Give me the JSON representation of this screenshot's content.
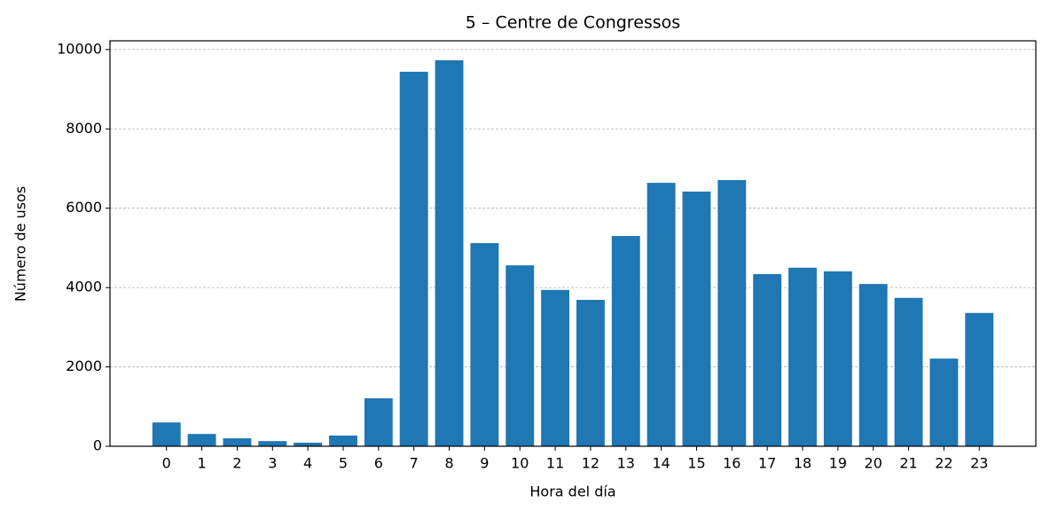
{
  "chart_data": {
    "type": "bar",
    "title": "5 – Centre de Congressos",
    "x_label": "Hora del día",
    "y_label": "Número de usos",
    "categories": [
      "0",
      "1",
      "2",
      "3",
      "4",
      "5",
      "6",
      "7",
      "8",
      "9",
      "10",
      "11",
      "12",
      "13",
      "14",
      "15",
      "16",
      "17",
      "18",
      "19",
      "20",
      "21",
      "22",
      "23"
    ],
    "values": [
      600,
      310,
      200,
      130,
      90,
      270,
      1210,
      9440,
      9730,
      5120,
      4560,
      3940,
      3690,
      5300,
      6640,
      6420,
      6710,
      4340,
      4500,
      4410,
      4090,
      3740,
      2210,
      3360
    ],
    "color": "#1f77b4",
    "ylim": [
      0,
      10220
    ],
    "yticks": [
      0,
      2000,
      4000,
      6000,
      8000,
      10000
    ],
    "grid": true
  }
}
